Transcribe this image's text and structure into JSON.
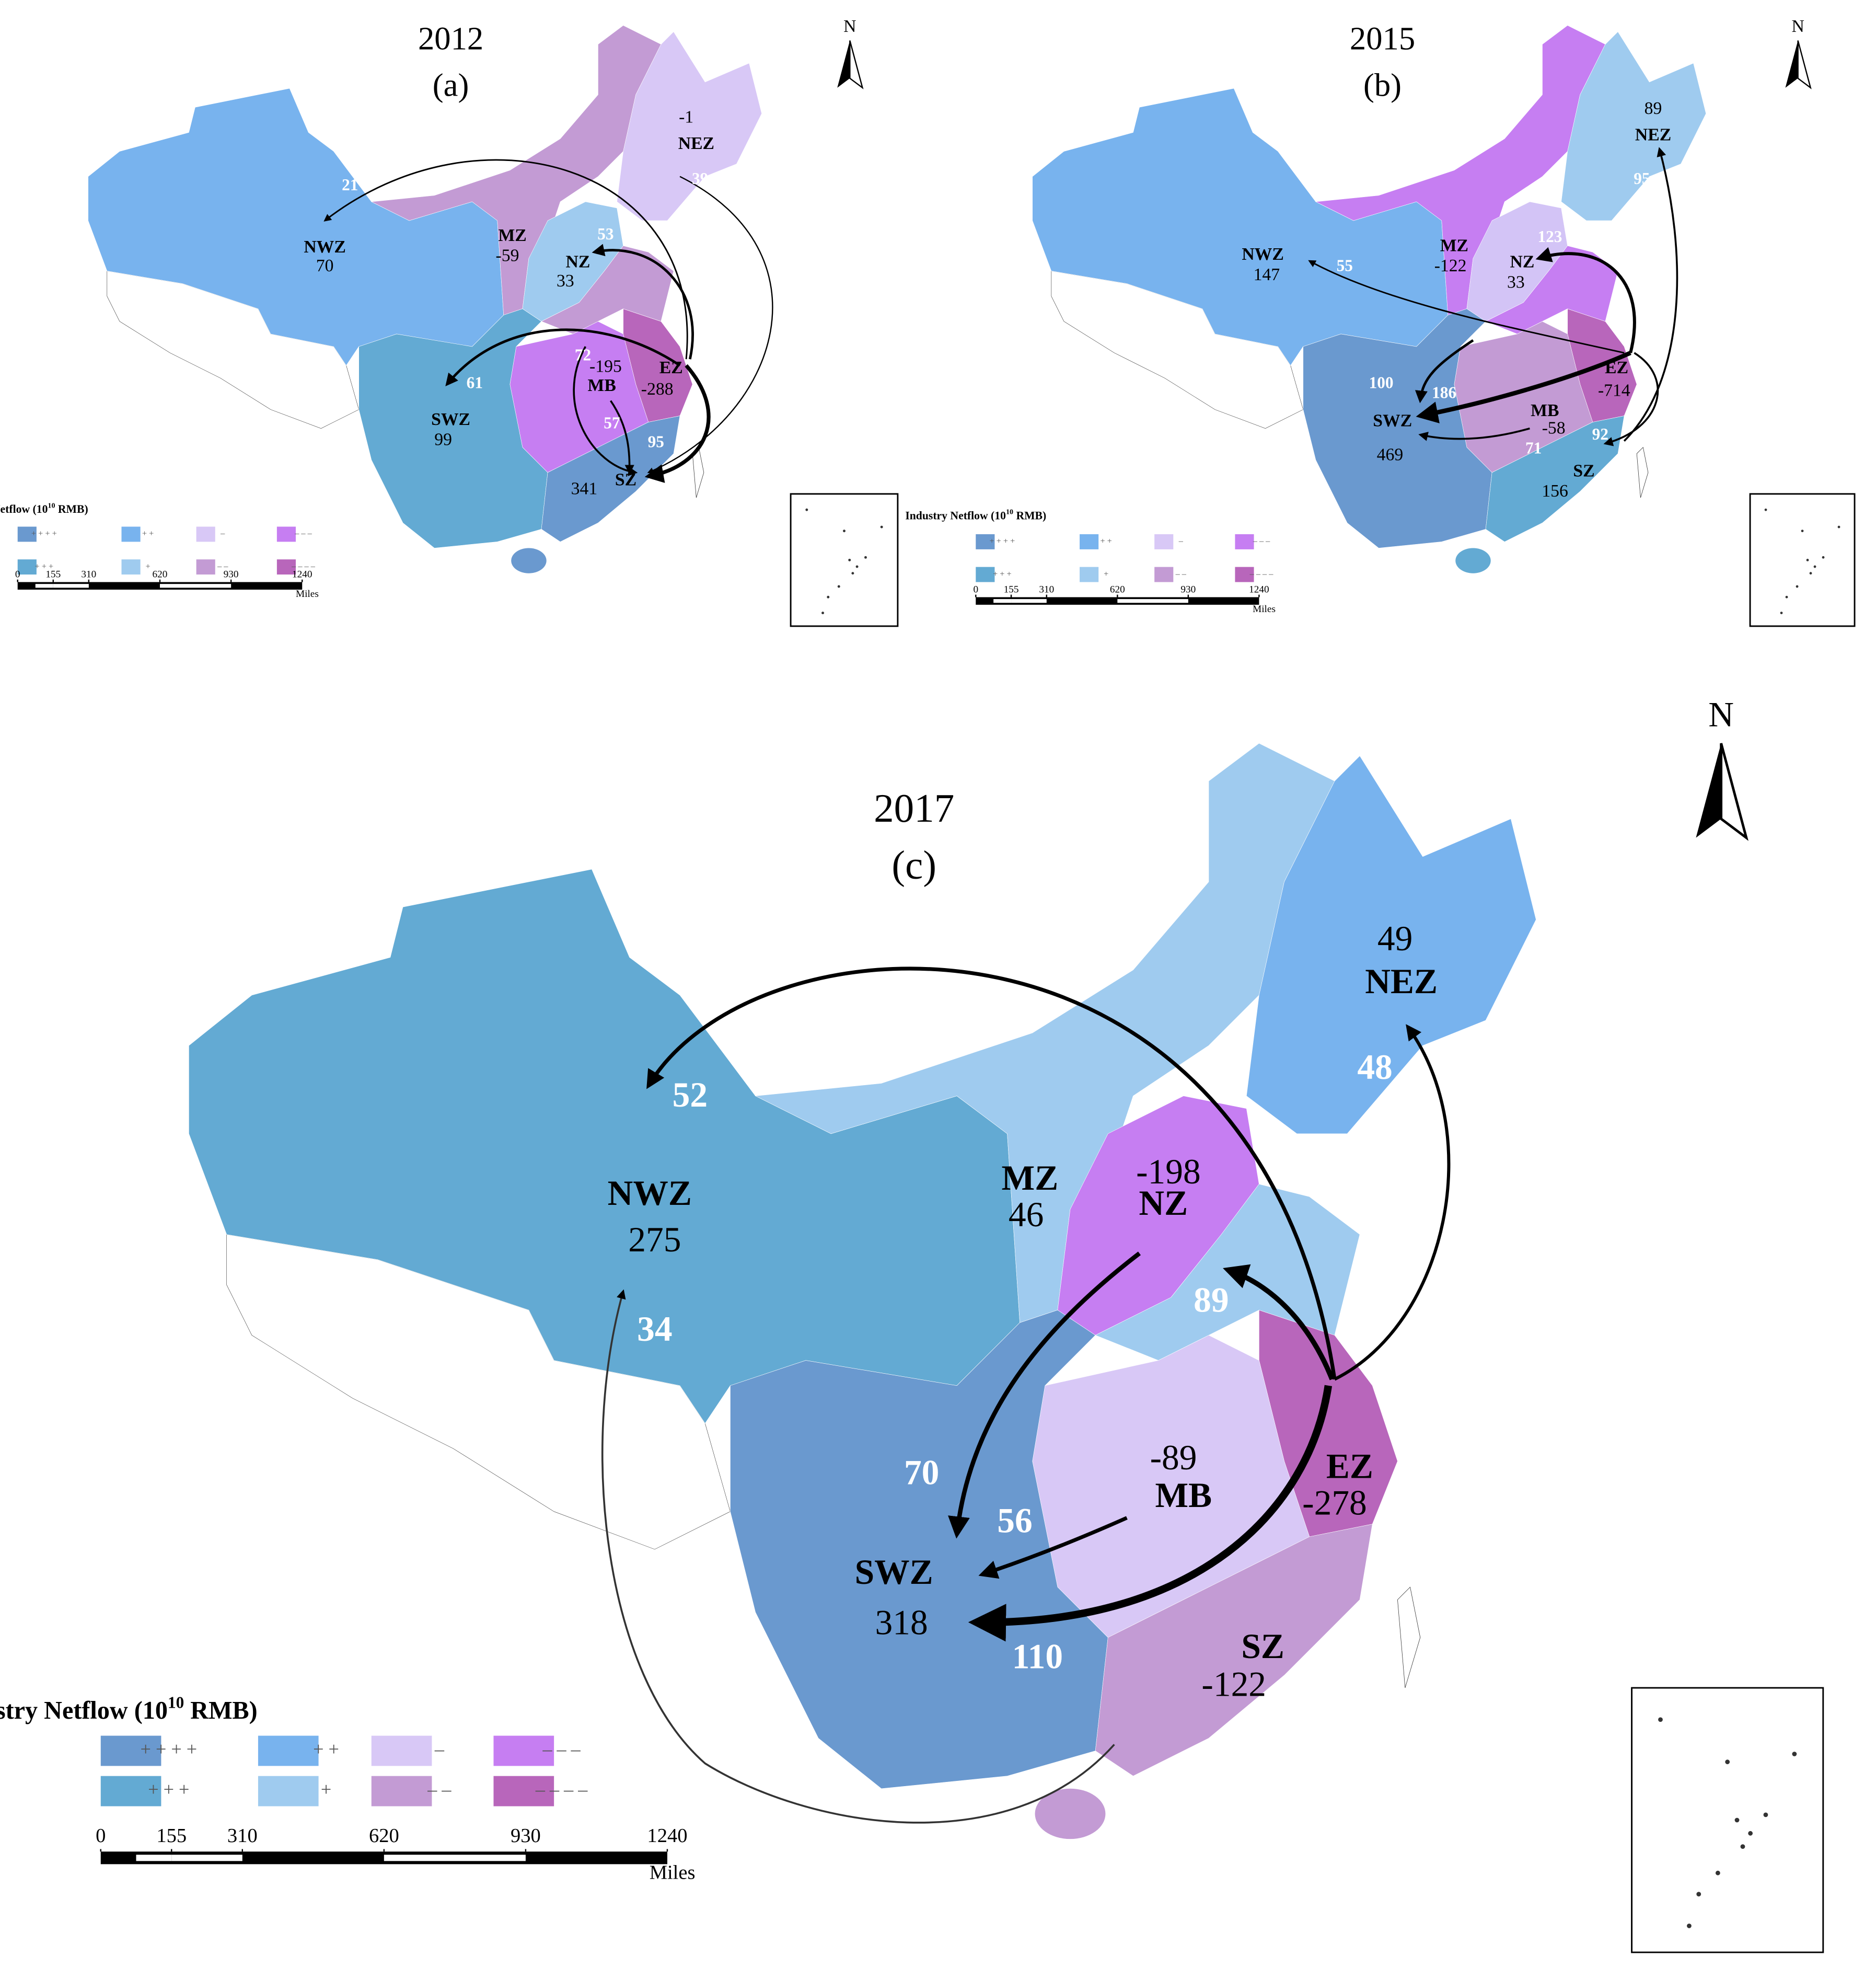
{
  "panels": [
    {
      "year": "2012",
      "label": "(a)",
      "regions": [
        {
          "name": "NWZ",
          "value": 70,
          "color": "#78b3ee"
        },
        {
          "name": "MZ",
          "value": -59,
          "color": "#c39bd4"
        },
        {
          "name": "NEZ",
          "value": -1,
          "color": "#d8c8f6"
        },
        {
          "name": "NZ",
          "value": 33,
          "color": "#9fcbef"
        },
        {
          "name": "EZ",
          "value": -288,
          "color": "#b866bb"
        },
        {
          "name": "MB",
          "value": -195,
          "color": "#c67ef2"
        },
        {
          "name": "SWZ",
          "value": 99,
          "color": "#63aad3"
        },
        {
          "name": "SZ",
          "value": 341,
          "color": "#6a99cf"
        }
      ],
      "flow_values": [
        21,
        53,
        39,
        61,
        72,
        57,
        95
      ]
    },
    {
      "year": "2015",
      "label": "(b)",
      "regions": [
        {
          "name": "NWZ",
          "value": 147,
          "color": "#78b3ee"
        },
        {
          "name": "MZ",
          "value": -122,
          "color": "#c67ef2"
        },
        {
          "name": "NEZ",
          "value": 89,
          "color": "#9fcbef"
        },
        {
          "name": "NZ",
          "value": 33,
          "color": "#d3c4f6"
        },
        {
          "name": "EZ",
          "value": -714,
          "color": "#b866bb"
        },
        {
          "name": "MB",
          "value": -58,
          "color": "#c39bd4"
        },
        {
          "name": "SWZ",
          "value": 469,
          "color": "#6a99cf"
        },
        {
          "name": "SZ",
          "value": 156,
          "color": "#63aad3"
        }
      ],
      "flow_values": [
        55,
        123,
        95,
        100,
        186,
        71,
        92
      ]
    },
    {
      "year": "2017",
      "label": "(c)",
      "regions": [
        {
          "name": "NWZ",
          "value": 275,
          "color": "#63aad3"
        },
        {
          "name": "MZ",
          "value": 46,
          "color": "#9fcbef"
        },
        {
          "name": "NEZ",
          "value": 49,
          "color": "#78b3ee"
        },
        {
          "name": "NZ",
          "value": -198,
          "color": "#c67ef2"
        },
        {
          "name": "EZ",
          "value": -278,
          "color": "#b866bb"
        },
        {
          "name": "MB",
          "value": -89,
          "color": "#d8c8f6"
        },
        {
          "name": "SWZ",
          "value": 318,
          "color": "#6a99cf"
        },
        {
          "name": "SZ",
          "value": -122,
          "color": "#c39bd4"
        }
      ],
      "flow_values": [
        52,
        34,
        48,
        89,
        70,
        56,
        110
      ]
    }
  ],
  "legend": {
    "title": "Industry Netflow (10",
    "exponent": "10",
    "unit": " RMB)",
    "entries": [
      {
        "symbol": "+ + + +",
        "color": "#6a99cf"
      },
      {
        "symbol": "+ + +",
        "color": "#63aad3"
      },
      {
        "symbol": "+ +",
        "color": "#78b3ee"
      },
      {
        "symbol": "+",
        "color": "#9fcbef"
      },
      {
        "symbol": "–",
        "color": "#d8c8f6"
      },
      {
        "symbol": "– –",
        "color": "#c39bd4"
      },
      {
        "symbol": "– – –",
        "color": "#c67ef2"
      },
      {
        "symbol": "– – – –",
        "color": "#b866bb"
      }
    ]
  },
  "scale_bar": {
    "ticks": [
      0,
      155,
      310,
      620,
      930,
      1240
    ],
    "unit": "Miles"
  },
  "north": "N"
}
